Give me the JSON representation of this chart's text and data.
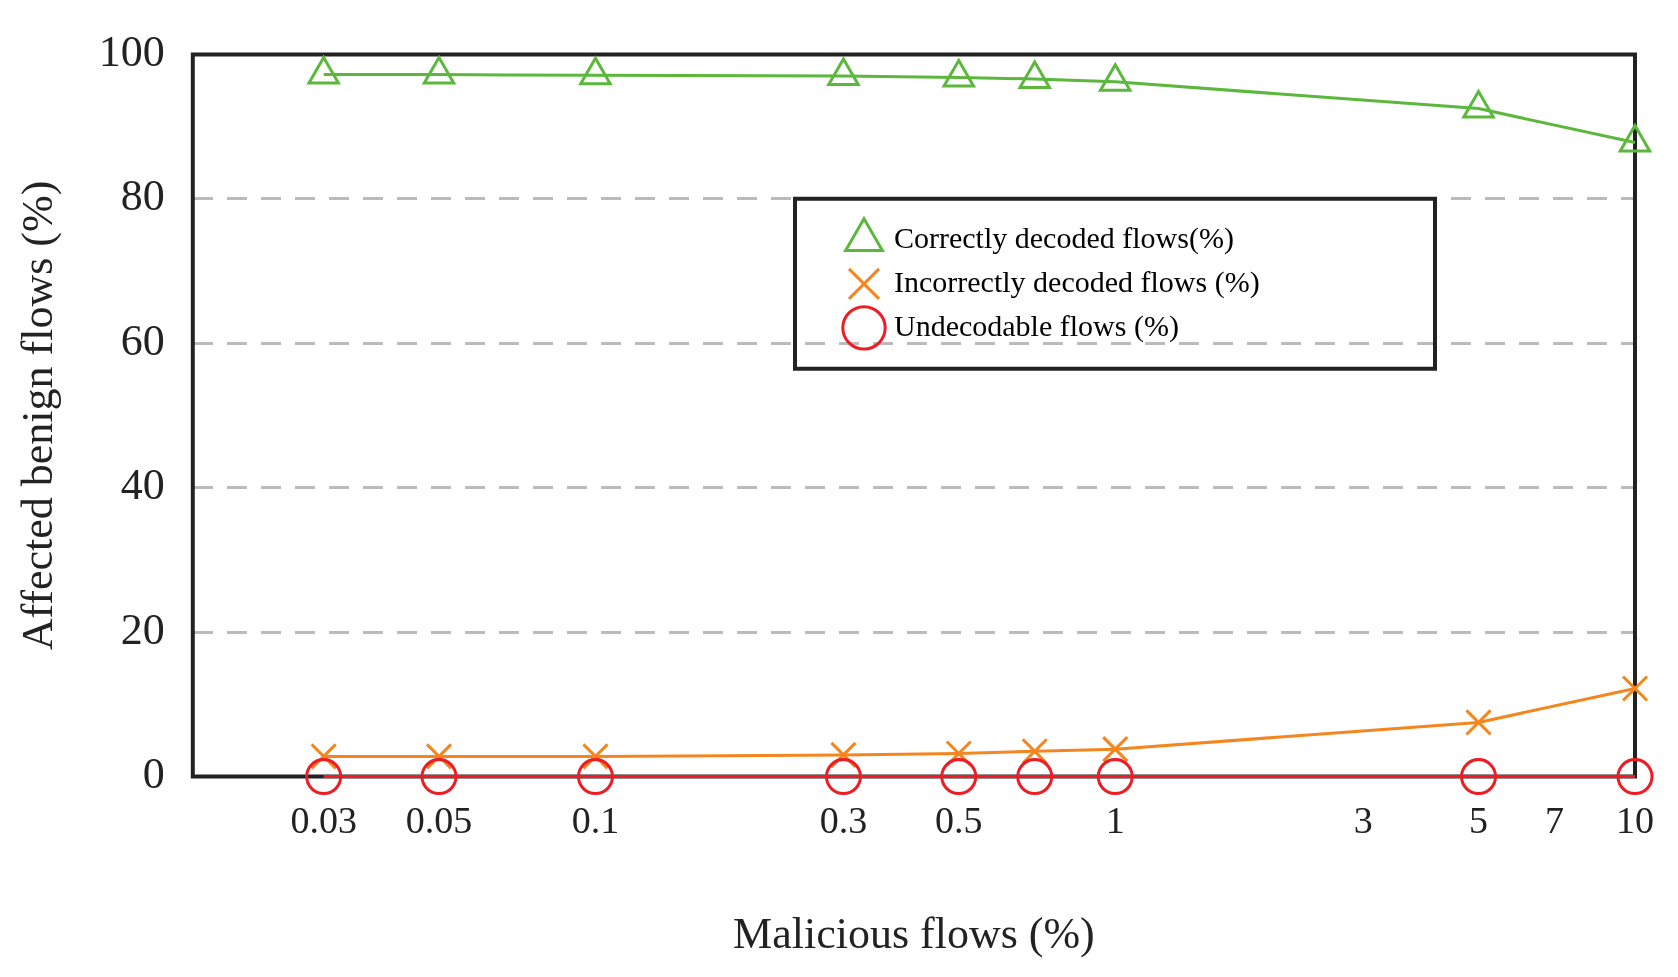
{
  "chart_data": {
    "type": "line",
    "xlabel": "Malicious flows (%)",
    "ylabel": "Affected benign flows (%)",
    "x": [
      0.03,
      0.05,
      0.1,
      0.3,
      0.5,
      0.7,
      1,
      5,
      10
    ],
    "series": [
      {
        "name": "Correctly decoded flows(%)",
        "color": "#5bb83c",
        "marker": "triangle",
        "values": [
          97.2,
          97.2,
          97.1,
          97.0,
          96.8,
          96.6,
          96.2,
          92.5,
          87.8
        ]
      },
      {
        "name": "Incorrectly decoded flows (%)",
        "color": "#f5861f",
        "marker": "cross",
        "values": [
          2.8,
          2.8,
          2.8,
          3.0,
          3.2,
          3.5,
          3.8,
          7.5,
          12.2
        ]
      },
      {
        "name": "Undecodable flows (%)",
        "color": "#ee1c25",
        "marker": "circle",
        "values": [
          0,
          0,
          0,
          0,
          0,
          0,
          0,
          0,
          0
        ]
      }
    ],
    "log": "x",
    "xlim": [
      0.0168,
      10
    ],
    "xticks": [
      0.03,
      0.05,
      0.1,
      0.3,
      0.5,
      1,
      3,
      5,
      7,
      10
    ],
    "ylim": [
      0,
      100
    ],
    "yticks": [
      0,
      20,
      40,
      60,
      80,
      100
    ],
    "grid": "y",
    "legend": "right",
    "line_style": "solid"
  }
}
